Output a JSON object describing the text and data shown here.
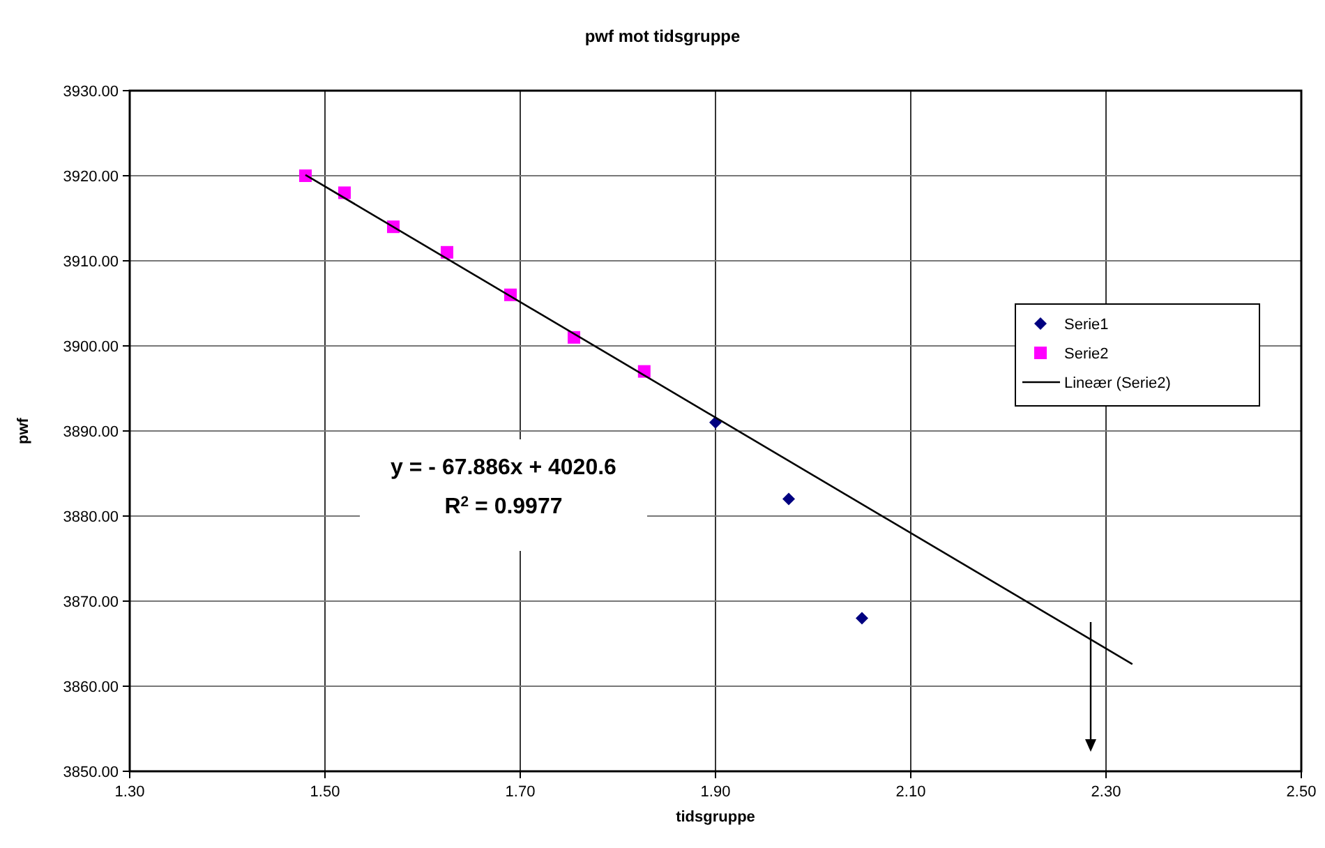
{
  "chart_data": {
    "type": "scatter",
    "title": "pwf mot tidsgruppe",
    "xlabel": "tidsgruppe",
    "ylabel": "pwf",
    "xlim": [
      1.3,
      2.5
    ],
    "xticks": [
      {
        "value": 1.3,
        "label": "1.30"
      },
      {
        "value": 1.5,
        "label": "1.50"
      },
      {
        "value": 1.7,
        "label": "1.70"
      },
      {
        "value": 1.9,
        "label": "1.90"
      },
      {
        "value": 2.1,
        "label": "2.10"
      },
      {
        "value": 2.3,
        "label": "2.30"
      },
      {
        "value": 2.5,
        "label": "2.50"
      }
    ],
    "ylim": [
      3850,
      3930
    ],
    "yticks": [
      {
        "value": 3850,
        "label": "3850.00"
      },
      {
        "value": 3860,
        "label": "3860.00"
      },
      {
        "value": 3870,
        "label": "3870.00"
      },
      {
        "value": 3880,
        "label": "3880.00"
      },
      {
        "value": 3890,
        "label": "3890.00"
      },
      {
        "value": 3900,
        "label": "3900.00"
      },
      {
        "value": 3910,
        "label": "3910.00"
      },
      {
        "value": 3920,
        "label": "3920.00"
      },
      {
        "value": 3930,
        "label": "3930.00"
      }
    ],
    "grid": true,
    "legend": "right",
    "series": [
      {
        "name": "Serie1",
        "marker": "diamond",
        "color": "#000080",
        "x": [
          1.9,
          1.975,
          2.05
        ],
        "values": [
          3891,
          3882,
          3868
        ]
      },
      {
        "name": "Serie2",
        "marker": "square",
        "color": "#ff00ff",
        "x": [
          1.48,
          1.52,
          1.57,
          1.625,
          1.69,
          1.755,
          1.827
        ],
        "values": [
          3920,
          3918,
          3914,
          3911,
          3906,
          3901,
          3897
        ]
      },
      {
        "name": "Lineær (Serie2)",
        "type": "line",
        "marker": "none",
        "color": "#000000",
        "x": [
          1.48,
          2.327
        ],
        "values": [
          3920.1,
          3862.6
        ]
      }
    ],
    "annotations": [
      "y = - 67.886x + 4020.6",
      "R$^{2}$ = 0.9977"
    ]
  }
}
